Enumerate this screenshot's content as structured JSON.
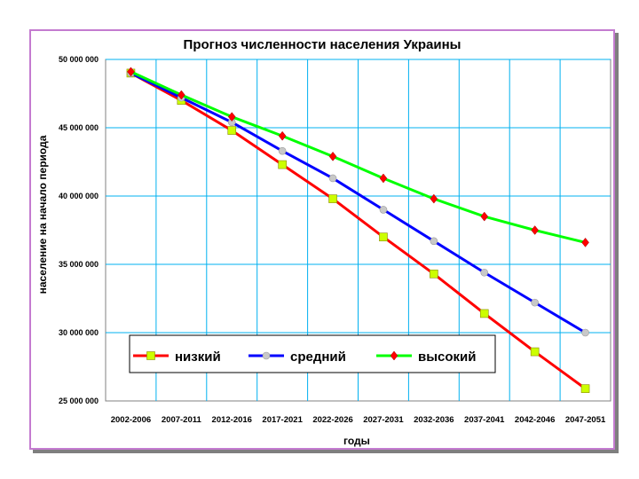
{
  "chart_data": {
    "type": "line",
    "title": "Прогноз численности населения Украины",
    "xlabel": "годы",
    "ylabel": "население на начало периода",
    "categories": [
      "2002-2006",
      "2007-2011",
      "2012-2016",
      "2017-2021",
      "2022-2026",
      "2027-2031",
      "2032-2036",
      "2037-2041",
      "2042-2046",
      "2047-2051"
    ],
    "ylim": [
      25000000,
      50000000
    ],
    "yticks": [
      25000000,
      30000000,
      35000000,
      40000000,
      45000000,
      50000000
    ],
    "ytick_labels": [
      "25 000 000",
      "30 000 000",
      "35 000 000",
      "40 000 000",
      "45 000 000",
      "50 000 000"
    ],
    "grid": true,
    "legend_position": "bottom inside plot",
    "series": [
      {
        "name": "низкий",
        "color": "#ff0000",
        "marker": "square",
        "marker_color": "#ccff00",
        "values": [
          49000000,
          47000000,
          44800000,
          42300000,
          39800000,
          37000000,
          34300000,
          31400000,
          28600000,
          25900000
        ]
      },
      {
        "name": "средний",
        "color": "#0000ff",
        "marker": "circle",
        "marker_color": "#c8c8c8",
        "values": [
          49000000,
          47200000,
          45400000,
          43300000,
          41300000,
          39000000,
          36700000,
          34400000,
          32200000,
          30000000
        ]
      },
      {
        "name": "высокий",
        "color": "#00ff00",
        "marker": "diamond",
        "marker_color": "#ff0000",
        "values": [
          49100000,
          47400000,
          45800000,
          44400000,
          42900000,
          41300000,
          39800000,
          38500000,
          37500000,
          36600000
        ]
      }
    ]
  },
  "colors": {
    "frame_border": "#c47bd0",
    "grid": "#00b0f0",
    "plot_border": "#808080"
  }
}
